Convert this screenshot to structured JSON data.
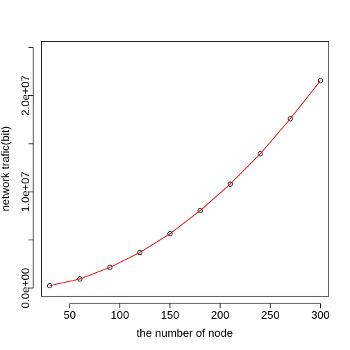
{
  "chart_data": {
    "type": "line",
    "title": "",
    "xlabel": "the number of node",
    "ylabel": "network trafic(bit)",
    "xlim": [
      22,
      308
    ],
    "ylim": [
      -800000,
      25600000
    ],
    "x_ticks": [
      50,
      100,
      150,
      200,
      250,
      300
    ],
    "x_tick_labels": [
      "50",
      "100",
      "150",
      "200",
      "250",
      "300"
    ],
    "y_ticks": [
      0,
      5000000,
      10000000,
      15000000,
      20000000,
      25000000
    ],
    "y_tick_labels": [
      "0.0e+00",
      "",
      "1.0e+07",
      "",
      "2.0e+07",
      ""
    ],
    "grid": false,
    "series": [
      {
        "style": "points-line",
        "color": "#000000",
        "marker": "open-circle",
        "x": [
          30,
          60,
          90,
          120,
          150,
          180,
          210,
          240,
          270,
          300
        ],
        "y": [
          250000,
          950000,
          2150000,
          3700000,
          5650000,
          8050000,
          10800000,
          13950000,
          17600000,
          21550000
        ]
      },
      {
        "style": "line",
        "color": "#ff0000",
        "x": [
          30,
          60,
          90,
          120,
          150,
          180,
          210,
          240,
          270,
          300
        ],
        "y": [
          250000,
          950000,
          2150000,
          3700000,
          5650000,
          8050000,
          10800000,
          13950000,
          17600000,
          21550000
        ]
      }
    ]
  }
}
